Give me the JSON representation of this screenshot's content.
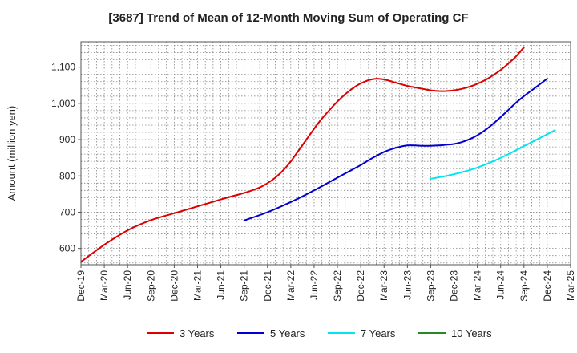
{
  "chart_data": {
    "type": "line",
    "title": "[3687]  Trend of Mean of 12-Month Moving Sum of Operating CF",
    "xlabel": "",
    "ylabel": "Amount (million yen)",
    "ylim": [
      555,
      1170
    ],
    "yticks": [
      600,
      700,
      800,
      900,
      1000,
      1100
    ],
    "ytick_labels": [
      "600",
      "700",
      "800",
      "900",
      "1,000",
      "1,100"
    ],
    "x_range_months": [
      0,
      63
    ],
    "xtick_labels": [
      "Dec-19",
      "Mar-20",
      "Jun-20",
      "Sep-20",
      "Dec-20",
      "Mar-21",
      "Jun-21",
      "Sep-21",
      "Dec-21",
      "Mar-22",
      "Jun-22",
      "Sep-22",
      "Dec-22",
      "Mar-23",
      "Jun-23",
      "Sep-23",
      "Dec-23",
      "Mar-24",
      "Jun-24",
      "Sep-24",
      "Dec-24",
      "Mar-25"
    ],
    "grid": true,
    "legend_position": "bottom",
    "series": [
      {
        "name": "3 Years",
        "color": "#dd0000",
        "points": [
          [
            0,
            563
          ],
          [
            3,
            610
          ],
          [
            6,
            650
          ],
          [
            9,
            678
          ],
          [
            12,
            697
          ],
          [
            15,
            716
          ],
          [
            18,
            735
          ],
          [
            21,
            753
          ],
          [
            22,
            760
          ],
          [
            23,
            768
          ],
          [
            24,
            780
          ],
          [
            25,
            795
          ],
          [
            26,
            815
          ],
          [
            27,
            840
          ],
          [
            28,
            870
          ],
          [
            29,
            900
          ],
          [
            30,
            930
          ],
          [
            31,
            958
          ],
          [
            32,
            982
          ],
          [
            33,
            1005
          ],
          [
            34,
            1025
          ],
          [
            35,
            1042
          ],
          [
            36,
            1055
          ],
          [
            37,
            1064
          ],
          [
            38,
            1068
          ],
          [
            39,
            1066
          ],
          [
            40,
            1060
          ],
          [
            41,
            1054
          ],
          [
            42,
            1048
          ],
          [
            43,
            1044
          ],
          [
            44,
            1040
          ],
          [
            45,
            1036
          ],
          [
            46,
            1034
          ],
          [
            47,
            1034
          ],
          [
            48,
            1036
          ],
          [
            49,
            1040
          ],
          [
            50,
            1046
          ],
          [
            51,
            1054
          ],
          [
            52,
            1064
          ],
          [
            53,
            1077
          ],
          [
            54,
            1092
          ],
          [
            55,
            1110
          ],
          [
            56,
            1130
          ],
          [
            57,
            1155
          ]
        ]
      },
      {
        "name": "5 Years",
        "color": "#0000cc",
        "points": [
          [
            21,
            677
          ],
          [
            24,
            700
          ],
          [
            27,
            728
          ],
          [
            30,
            760
          ],
          [
            33,
            795
          ],
          [
            36,
            830
          ],
          [
            37,
            843
          ],
          [
            38,
            855
          ],
          [
            39,
            866
          ],
          [
            40,
            874
          ],
          [
            41,
            880
          ],
          [
            42,
            884
          ],
          [
            43,
            884
          ],
          [
            44,
            883
          ],
          [
            45,
            883
          ],
          [
            46,
            884
          ],
          [
            47,
            886
          ],
          [
            48,
            888
          ],
          [
            49,
            893
          ],
          [
            50,
            901
          ],
          [
            51,
            912
          ],
          [
            52,
            926
          ],
          [
            53,
            943
          ],
          [
            54,
            962
          ],
          [
            55,
            982
          ],
          [
            56,
            1002
          ],
          [
            57,
            1020
          ],
          [
            58,
            1036
          ],
          [
            59,
            1052
          ],
          [
            60,
            1068
          ]
        ]
      },
      {
        "name": "7 Years",
        "color": "#00e5ee",
        "points": [
          [
            45,
            792
          ],
          [
            47,
            800
          ],
          [
            49,
            810
          ],
          [
            51,
            823
          ],
          [
            53,
            840
          ],
          [
            55,
            860
          ],
          [
            57,
            882
          ],
          [
            59,
            904
          ],
          [
            60,
            915
          ],
          [
            61,
            926
          ]
        ]
      },
      {
        "name": "10 Years",
        "color": "#228b22",
        "points": []
      }
    ]
  }
}
